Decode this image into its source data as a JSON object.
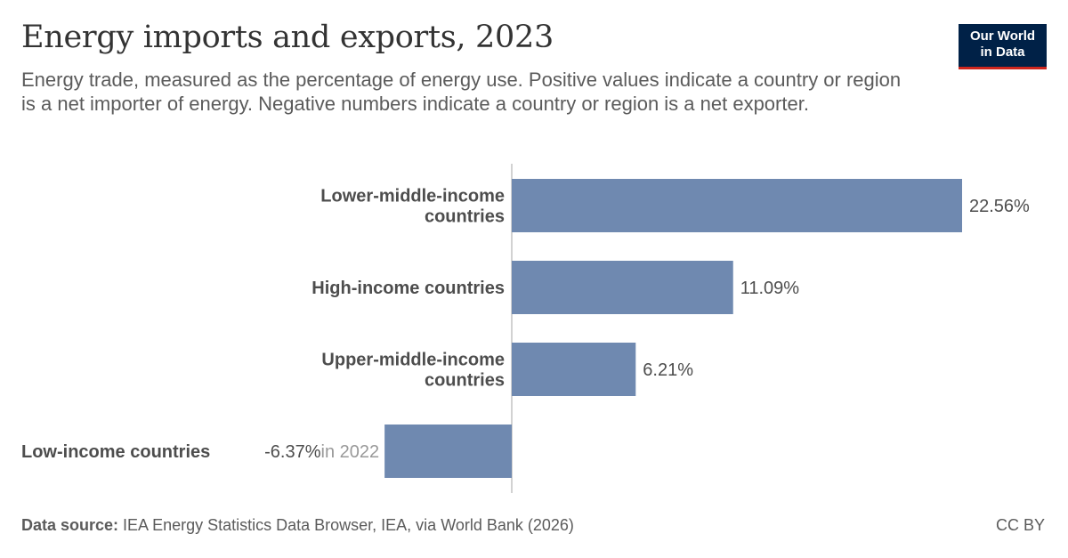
{
  "header": {
    "title": "Energy imports and exports, 2023",
    "subtitle": "Energy trade, measured as the percentage of energy use. Positive values indicate a country or region is a net importer of energy. Negative numbers indicate a country or region is a net exporter."
  },
  "logo": {
    "line1": "Our World",
    "line2": "in Data",
    "bg_color": "#002147",
    "accent_color": "#ce261e"
  },
  "chart_data": {
    "type": "bar",
    "orientation": "horizontal",
    "title": "Energy imports and exports, 2023",
    "unit": "%",
    "bar_color": "#6f89b0",
    "xlim": [
      -6.37,
      22.56
    ],
    "categories": [
      {
        "label_lines": [
          "Lower-middle-income",
          "countries"
        ],
        "value": 22.56,
        "value_label": "22.56%",
        "note": ""
      },
      {
        "label_lines": [
          "High-income countries"
        ],
        "value": 11.09,
        "value_label": "11.09%",
        "note": ""
      },
      {
        "label_lines": [
          "Upper-middle-income",
          "countries"
        ],
        "value": 6.21,
        "value_label": "6.21%",
        "note": ""
      },
      {
        "label_lines": [
          "Low-income countries"
        ],
        "value": -6.37,
        "value_label": "-6.37%",
        "note": "in 2022"
      }
    ]
  },
  "footer": {
    "source_label": "Data source:",
    "source_text": " IEA Energy Statistics Data Browser, IEA, via World Bank (2026)",
    "license": "CC BY"
  }
}
